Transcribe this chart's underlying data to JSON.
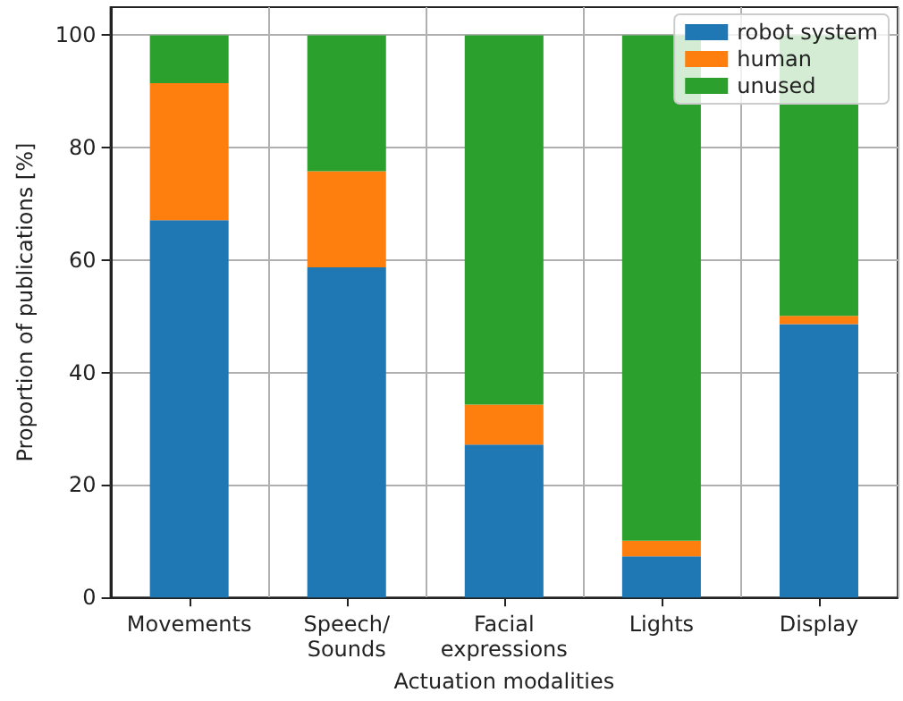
{
  "chart_data": {
    "type": "bar",
    "stacked": true,
    "xlabel": "Actuation modalities",
    "ylabel": "Proportion of publications [%]",
    "categories": [
      "Movements",
      "Speech/\nSounds",
      "Facial\nexpressions",
      "Lights",
      "Display"
    ],
    "series": [
      {
        "name": "robot system",
        "color": "#1f77b4",
        "values": [
          67.1,
          58.7,
          27.2,
          7.3,
          48.6
        ]
      },
      {
        "name": "human",
        "color": "#ff7f0e",
        "values": [
          24.4,
          17.1,
          7.1,
          2.8,
          1.5
        ]
      },
      {
        "name": "unused",
        "color": "#2ca02c",
        "values": [
          8.5,
          24.2,
          65.7,
          89.9,
          49.9
        ]
      }
    ],
    "ylim": [
      0,
      105
    ],
    "yticks": [
      0,
      20,
      40,
      60,
      80,
      100
    ],
    "grid": true,
    "legend": "top right"
  }
}
